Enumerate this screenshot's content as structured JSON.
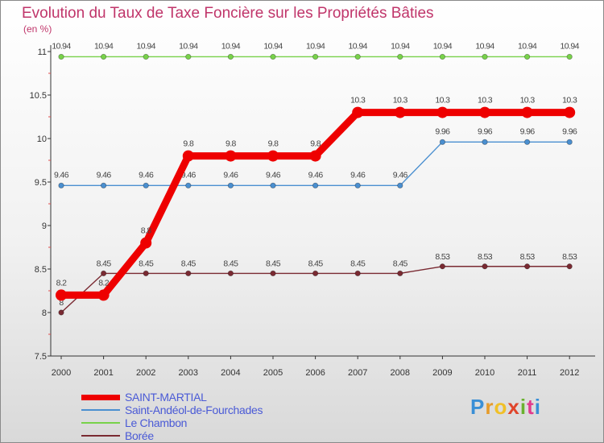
{
  "title": "Evolution du Taux de Taxe Foncière sur les Propriétés Bâties",
  "unit_label": "(en %)",
  "logo": {
    "letters": [
      "P",
      "r",
      "o",
      "x",
      "i",
      "t",
      "i"
    ],
    "colors": [
      "#3a8fd6",
      "#e69b2a",
      "#f0c028",
      "#e0452b",
      "#6ab12f",
      "#e23a8c",
      "#3a8fd6"
    ]
  },
  "chart_data": {
    "type": "line",
    "title": "Evolution du Taux de Taxe Foncière sur les Propriétés Bâties",
    "ylabel": "(en %)",
    "x": [
      "2000",
      "2001",
      "2002",
      "2003",
      "2004",
      "2005",
      "2006",
      "2007",
      "2008",
      "2009",
      "2010",
      "2011",
      "2012"
    ],
    "ylim": [
      7.5,
      11
    ],
    "yticks": [
      "7.5",
      "8",
      "8.5",
      "9",
      "9.5",
      "10",
      "10.5",
      "11"
    ],
    "series": [
      {
        "name": "Le Chambon",
        "color": "#78d24a",
        "values": [
          10.94,
          10.94,
          10.94,
          10.94,
          10.94,
          10.94,
          10.94,
          10.94,
          10.94,
          10.94,
          10.94,
          10.94,
          10.94
        ],
        "labels": [
          "10.94",
          "10.94",
          "10.94",
          "10.94",
          "10.94",
          "10.94",
          "10.94",
          "10.94",
          "10.94",
          "10.94",
          "10.94",
          "10.94",
          "10.94"
        ]
      },
      {
        "name": "Saint-Andéol-de-Fourchades",
        "color": "#4a8fd0",
        "values": [
          9.46,
          9.46,
          9.46,
          9.46,
          9.46,
          9.46,
          9.46,
          9.46,
          9.46,
          9.96,
          9.96,
          9.96,
          9.96
        ],
        "labels": [
          "9.46",
          "9.46",
          "9.46",
          "9.46",
          "9.46",
          "9.46",
          "9.46",
          "9.46",
          "9.46",
          "9.96",
          "9.96",
          "9.96",
          "9.96"
        ]
      },
      {
        "name": "Borée",
        "color": "#7a2a32",
        "values": [
          8,
          8.45,
          8.45,
          8.45,
          8.45,
          8.45,
          8.45,
          8.45,
          8.45,
          8.53,
          8.53,
          8.53,
          8.53
        ],
        "labels": [
          "8",
          "8.45",
          "8.45",
          "8.45",
          "8.45",
          "8.45",
          "8.45",
          "8.45",
          "8.45",
          "8.53",
          "8.53",
          "8.53",
          "8.53"
        ]
      },
      {
        "name": "SAINT-MARTIAL",
        "color": "#ee0000",
        "values": [
          8.2,
          8.2,
          8.8,
          9.8,
          9.8,
          9.8,
          9.8,
          10.3,
          10.3,
          10.3,
          10.3,
          10.3,
          10.3
        ],
        "labels": [
          "8.2",
          "8.2",
          "8.8",
          "9.8",
          "9.8",
          "9.8",
          "9.8",
          "10.3",
          "10.3",
          "10.3",
          "10.3",
          "10.3",
          "10.3"
        ]
      }
    ],
    "legend": [
      "SAINT-MARTIAL",
      "Saint-Andéol-de-Fourchades",
      "Le Chambon",
      "Borée"
    ],
    "grid": false,
    "legend_position": "bottom-left"
  }
}
